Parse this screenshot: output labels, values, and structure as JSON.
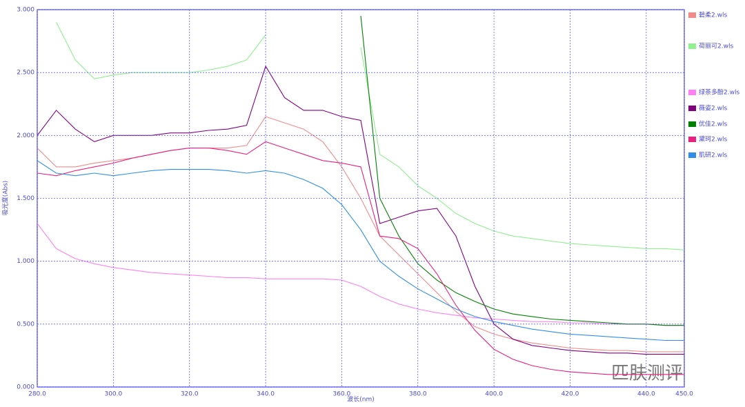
{
  "chart_data": {
    "type": "line",
    "x_label": "波长(nm)",
    "y_label": "吸光度(Abs)",
    "watermark": "匹肤测评",
    "x": [
      280,
      285,
      290,
      295,
      300,
      305,
      310,
      315,
      320,
      325,
      330,
      335,
      340,
      345,
      350,
      355,
      360,
      365,
      370,
      375,
      380,
      385,
      390,
      395,
      400,
      405,
      410,
      415,
      420,
      425,
      430,
      435,
      440,
      445,
      450
    ],
    "xlim": [
      280,
      450
    ],
    "ylim": [
      0,
      3
    ],
    "grid": true,
    "xticks": [
      {
        "value": 280,
        "label": "280.0"
      },
      {
        "value": 300,
        "label": "300.0"
      },
      {
        "value": 320,
        "label": "320.0"
      },
      {
        "value": 340,
        "label": "340.0"
      },
      {
        "value": 360,
        "label": "360.0"
      },
      {
        "value": 380,
        "label": "380.0"
      },
      {
        "value": 400,
        "label": "400.0"
      },
      {
        "value": 420,
        "label": "420.0"
      },
      {
        "value": 440,
        "label": "440.0"
      },
      {
        "value": 450,
        "label": "450.0"
      }
    ],
    "yticks": [
      {
        "value": 0,
        "label": "0.000"
      },
      {
        "value": 0.5,
        "label": "0.500"
      },
      {
        "value": 1,
        "label": "1.000"
      },
      {
        "value": 1.5,
        "label": "1.500"
      },
      {
        "value": 2,
        "label": "2.000"
      },
      {
        "value": 2.5,
        "label": "2.500"
      },
      {
        "value": 3,
        "label": "3.000"
      }
    ],
    "series": [
      {
        "name": "碧柔2.wls",
        "color": "#f28a8a",
        "values": [
          1.9,
          1.75,
          1.75,
          1.78,
          1.8,
          1.82,
          1.85,
          1.88,
          1.9,
          1.9,
          1.9,
          1.92,
          2.15,
          2.1,
          2.05,
          1.95,
          1.75,
          1.5,
          1.2,
          1.05,
          0.9,
          0.75,
          0.6,
          0.48,
          0.42,
          0.38,
          0.35,
          0.33,
          0.31,
          0.3,
          0.29,
          0.29,
          0.28,
          0.28,
          0.28
        ]
      },
      {
        "name": "荷丽可2.wls",
        "color": "#8ef08e",
        "values": [
          null,
          2.9,
          2.6,
          2.45,
          2.48,
          2.5,
          2.5,
          2.5,
          2.5,
          2.52,
          2.55,
          2.6,
          2.8,
          null,
          null,
          null,
          null,
          2.7,
          1.85,
          1.75,
          1.6,
          1.5,
          1.38,
          1.3,
          1.24,
          1.2,
          1.18,
          1.16,
          1.14,
          1.13,
          1.12,
          1.11,
          1.1,
          1.1,
          1.09
        ]
      },
      {
        "name": "绿茶多酚2.wls",
        "color": "#ff80f0",
        "values": [
          1.3,
          1.1,
          1.02,
          0.98,
          0.95,
          0.93,
          0.91,
          0.9,
          0.89,
          0.88,
          0.87,
          0.87,
          0.86,
          0.86,
          0.86,
          0.86,
          0.85,
          0.8,
          0.72,
          0.66,
          0.62,
          0.59,
          0.57,
          0.55,
          0.54,
          0.53,
          0.52,
          0.52,
          0.51,
          0.51,
          0.5,
          0.5,
          0.5,
          0.49,
          0.49
        ]
      },
      {
        "name": "薇姿2.wls",
        "color": "#800080",
        "values": [
          2.0,
          2.2,
          2.05,
          1.95,
          2.0,
          2.0,
          2.0,
          2.02,
          2.02,
          2.04,
          2.05,
          2.08,
          2.55,
          2.3,
          2.2,
          2.2,
          2.15,
          2.12,
          1.3,
          1.35,
          1.4,
          1.42,
          1.2,
          0.8,
          0.5,
          0.38,
          0.33,
          0.31,
          0.29,
          0.28,
          0.27,
          0.27,
          0.26,
          0.26,
          0.26
        ]
      },
      {
        "name": "优佳2.wls",
        "color": "#008000",
        "values": [
          null,
          null,
          null,
          null,
          null,
          null,
          null,
          null,
          null,
          null,
          null,
          null,
          null,
          null,
          null,
          null,
          null,
          2.95,
          1.5,
          1.2,
          0.98,
          0.85,
          0.75,
          0.68,
          0.62,
          0.58,
          0.56,
          0.54,
          0.53,
          0.52,
          0.51,
          0.5,
          0.5,
          0.49,
          0.49
        ]
      },
      {
        "name": "黛珂2.wls",
        "color": "#e8207e",
        "values": [
          1.7,
          1.68,
          1.72,
          1.75,
          1.78,
          1.82,
          1.85,
          1.88,
          1.9,
          1.9,
          1.88,
          1.85,
          1.95,
          1.9,
          1.85,
          1.8,
          1.78,
          1.75,
          1.2,
          1.18,
          1.1,
          0.9,
          0.65,
          0.45,
          0.3,
          0.22,
          0.17,
          0.14,
          0.12,
          0.11,
          0.1,
          0.1,
          0.1,
          0.1,
          0.1
        ]
      },
      {
        "name": "肌研2.wls",
        "color": "#2f8fe8",
        "values": [
          1.8,
          1.7,
          1.68,
          1.7,
          1.68,
          1.7,
          1.72,
          1.73,
          1.73,
          1.73,
          1.72,
          1.7,
          1.72,
          1.7,
          1.65,
          1.58,
          1.45,
          1.25,
          1.0,
          0.88,
          0.78,
          0.7,
          0.62,
          0.56,
          0.52,
          0.49,
          0.46,
          0.44,
          0.42,
          0.41,
          0.4,
          0.39,
          0.38,
          0.37,
          0.37
        ]
      }
    ]
  }
}
